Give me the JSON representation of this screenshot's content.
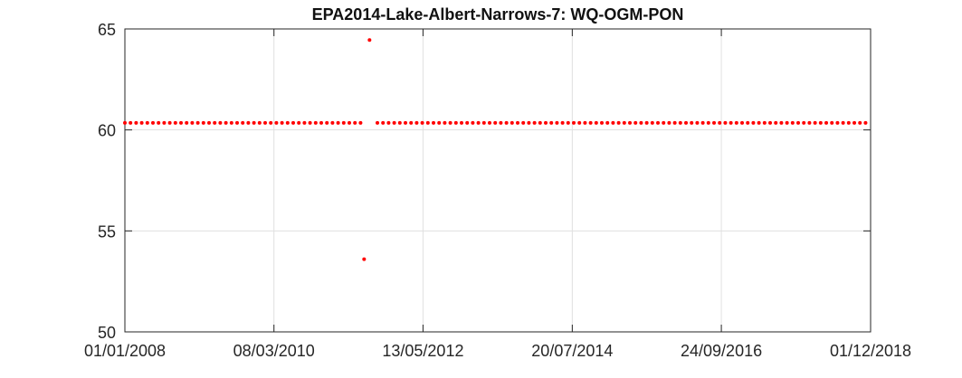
{
  "chart_data": {
    "type": "scatter",
    "title": "EPA2014-Lake-Albert-Narrows-7: WQ-OGM-PON",
    "xlabel": "",
    "ylabel": "",
    "x_axis_type": "date",
    "xlim": [
      "2008-01-01",
      "2018-12-01"
    ],
    "ylim": [
      50,
      65
    ],
    "x_tick_labels": [
      "01/01/2008",
      "08/03/2010",
      "13/05/2012",
      "20/07/2014",
      "24/09/2016",
      "01/12/2018"
    ],
    "y_ticks": [
      50,
      55,
      60,
      65
    ],
    "grid": true,
    "marker_color": "#ff0000",
    "series": [
      {
        "constant_value": 60.35,
        "x_start": "2008-01-01",
        "x_end": "2018-12-01",
        "interval_days": 30,
        "gap": [
          "2011-06-20",
          "2011-08-15"
        ],
        "outliers": [
          {
            "x": "2011-07-03",
            "y": 53.6
          },
          {
            "x": "2011-08-01",
            "y": 64.45
          }
        ]
      }
    ]
  }
}
